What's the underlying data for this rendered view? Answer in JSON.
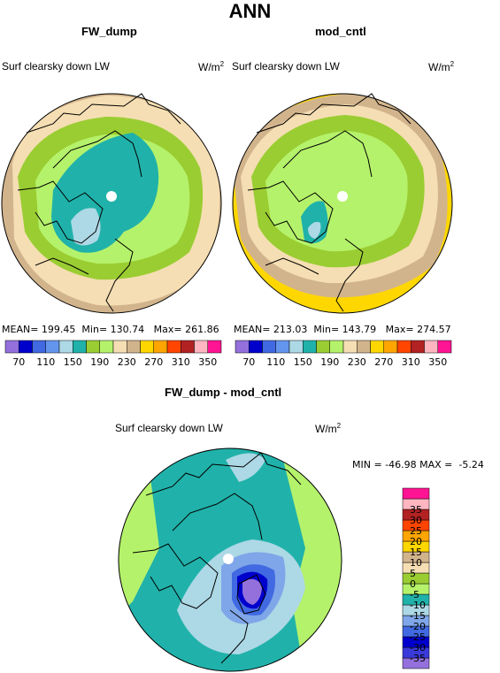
{
  "figure_title": "ANN",
  "panels": [
    {
      "title": "FW_dump",
      "subtitle": "Surf clearsky down LW",
      "units": "W/m",
      "stats": {
        "mean_label": "MEAN=",
        "mean": "199.45",
        "min_label": "Min=",
        "min": "130.74",
        "max_label": "Max=",
        "max": "261.86"
      }
    },
    {
      "title": "mod_cntl",
      "subtitle": "Surf clearsky down LW",
      "units": "W/m",
      "stats": {
        "mean_label": "MEAN=",
        "mean": "213.03",
        "min_label": "Min=",
        "min": "143.79",
        "max_label": "Max=",
        "max": "274.57"
      }
    },
    {
      "title": "FW_dump - mod_cntl",
      "subtitle": "Surf clearsky down LW",
      "units": "W/m",
      "stats_line": "MIN = -46.98 MAX =  -5.24"
    }
  ],
  "units_exponent": "2",
  "colorbar_top": {
    "colors": [
      "#9370db",
      "#0000cd",
      "#4169e1",
      "#6495ed",
      "#add8e6",
      "#20b2aa",
      "#9acd32",
      "#b5f26b",
      "#f5deb3",
      "#d2b48c",
      "#ffd700",
      "#ffa500",
      "#ff4500",
      "#b22222",
      "#ffb6c1",
      "#ff1493"
    ],
    "labels": [
      "70",
      "110",
      "150",
      "190",
      "230",
      "270",
      "310",
      "350"
    ]
  },
  "colorbar_diff": {
    "colors": [
      "#9370db",
      "#3a3adb",
      "#0000cd",
      "#4169e1",
      "#7fa6e8",
      "#add8e6",
      "#20b2aa",
      "#b5f26b",
      "#9acd32",
      "#f5deb3",
      "#d2b48c",
      "#ffd700",
      "#ffa500",
      "#ff4500",
      "#b22222",
      "#ffb6c1",
      "#ff1493"
    ],
    "labels": [
      "-35",
      "-30",
      "-25",
      "-20",
      "-15",
      "-10",
      "-5",
      "0",
      "5",
      "10",
      "15",
      "20",
      "25",
      "30",
      "35"
    ]
  },
  "map_colors": {
    "tan": "#d2b48c",
    "wheat": "#f5deb3",
    "green": "#9acd32",
    "lightgreen": "#b5f26b",
    "teal": "#20b2aa",
    "lightblue": "#add8e6",
    "gold": "#ffd700",
    "midblue": "#4169e1",
    "darkblue": "#0000cd",
    "purple": "#9370db"
  }
}
